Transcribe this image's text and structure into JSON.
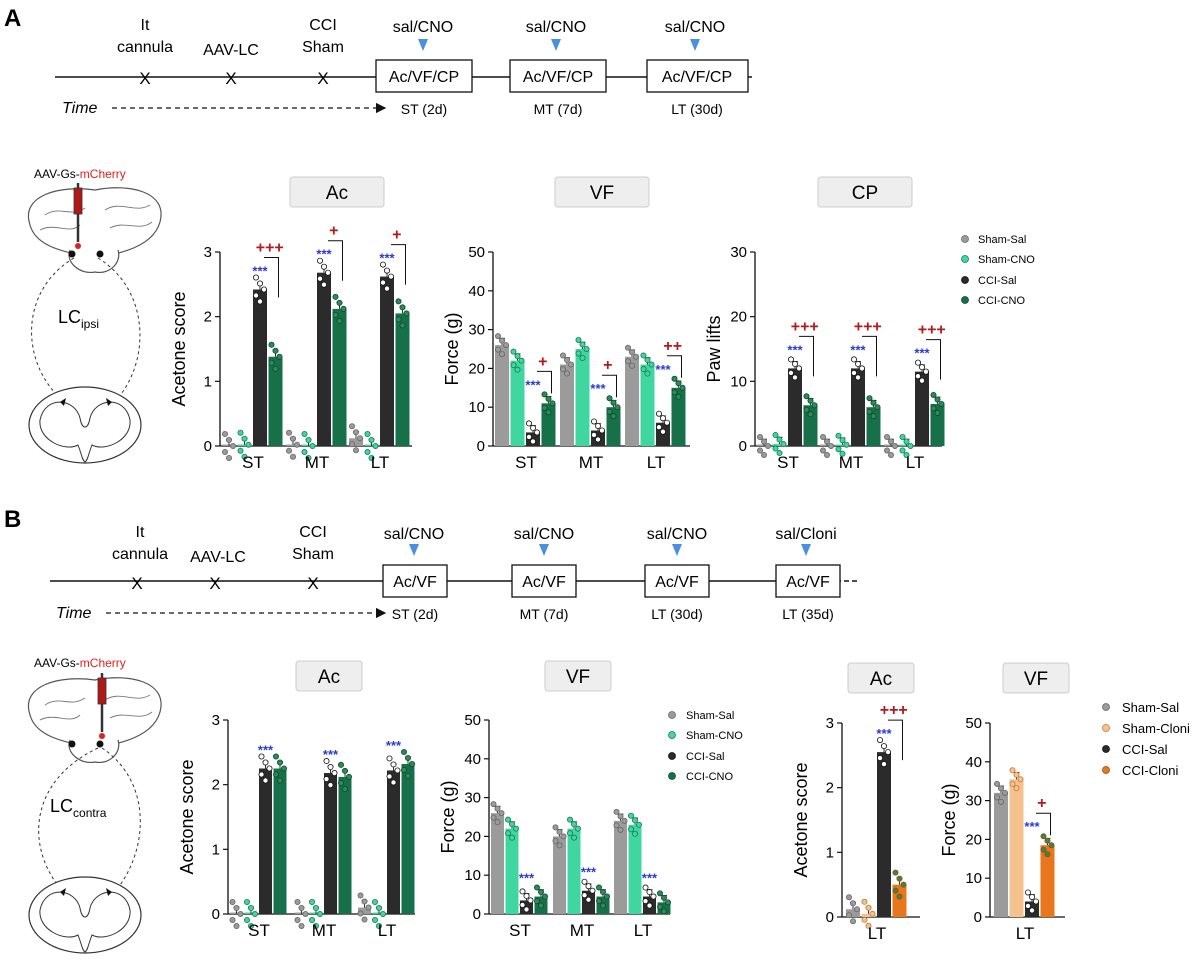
{
  "colors": {
    "sham_sal": "#9b9b9b",
    "sham_cno": "#3fd6a0",
    "cci_sal": "#2b2b2b",
    "cci_cno": "#16704a",
    "sham_cloni": "#f5c28f",
    "cci_cloni": "#e8761c",
    "stat_blue": "#2a3ad8",
    "stat_red": "#b31b1b",
    "arrow_blue": "#4a90e0",
    "mcherry_red": "#e02020"
  },
  "panelA": {
    "letter": "A",
    "timeline": {
      "events": [
        "It\ncannula",
        "AAV-LC",
        "CCI\nSham"
      ],
      "injection": "sal/CNO",
      "boxes": [
        "Ac/VF/CP",
        "Ac/VF/CP",
        "Ac/VF/CP"
      ],
      "times": [
        "ST (2d)",
        "MT (7d)",
        "LT (30d)"
      ],
      "time_label": "Time"
    },
    "brain": {
      "vector_prefix": "AAV-Gs-",
      "vector_suffix": "mCherry",
      "lc_main": "LC",
      "lc_sub": "ipsi"
    },
    "legend": [
      "Sham-Sal",
      "Sham-CNO",
      "CCI-Sal",
      "CCI-CNO"
    ]
  },
  "panelB": {
    "letter": "B",
    "timeline": {
      "events": [
        "It\ncannula",
        "AAV-LC",
        "CCI\nSham"
      ],
      "injections": [
        "sal/CNO",
        "sal/CNO",
        "sal/CNO",
        "sal/Cloni"
      ],
      "boxes": [
        "Ac/VF",
        "Ac/VF",
        "Ac/VF",
        "Ac/VF"
      ],
      "times": [
        "ST (2d)",
        "MT (7d)",
        "LT (30d)",
        "LT (35d)"
      ],
      "time_label": "Time"
    },
    "brain": {
      "vector_prefix": "AAV-Gs-",
      "vector_suffix": "mCherry",
      "lc_main": "LC",
      "lc_sub": "contra"
    },
    "legend": [
      "Sham-Sal",
      "Sham-CNO",
      "CCI-Sal",
      "CCI-CNO"
    ],
    "legend2": [
      "Sham-Sal",
      "Sham-Cloni",
      "CCI-Sal",
      "CCI-Cloni"
    ]
  },
  "chart_data": [
    {
      "panel": "A",
      "title": "Ac",
      "type": "bar",
      "ylabel": "Acetone score",
      "ylim": [
        0,
        3
      ],
      "yticks": [
        0,
        1,
        2,
        3
      ],
      "categories": [
        "ST",
        "MT",
        "LT"
      ],
      "series": [
        {
          "name": "Sham-Sal",
          "values": [
            0.0,
            0.02,
            0.12
          ]
        },
        {
          "name": "Sham-CNO",
          "values": [
            0.02,
            0.0,
            0.0
          ]
        },
        {
          "name": "CCI-Sal",
          "values": [
            2.42,
            2.68,
            2.62
          ]
        },
        {
          "name": "CCI-CNO",
          "values": [
            1.38,
            2.12,
            2.05
          ]
        }
      ],
      "stars": [
        "***",
        "***",
        "***"
      ],
      "pluses": [
        "+++",
        "+",
        "+"
      ]
    },
    {
      "panel": "A",
      "title": "VF",
      "type": "bar",
      "ylabel": "Force (g)",
      "ylim": [
        0,
        50
      ],
      "yticks": [
        0,
        10,
        20,
        30,
        40,
        50
      ],
      "categories": [
        "ST",
        "MT",
        "LT"
      ],
      "series": [
        {
          "name": "Sham-Sal",
          "values": [
            26,
            21,
            23
          ]
        },
        {
          "name": "Sham-CNO",
          "values": [
            22,
            25,
            21
          ]
        },
        {
          "name": "CCI-Sal",
          "values": [
            3.5,
            4,
            6
          ]
        },
        {
          "name": "CCI-CNO",
          "values": [
            11,
            10,
            15
          ]
        }
      ],
      "stars": [
        "***",
        "***",
        "***"
      ],
      "pluses": [
        "+",
        "+",
        "++"
      ]
    },
    {
      "panel": "A",
      "title": "CP",
      "type": "bar",
      "ylabel": "Paw lifts",
      "ylim": [
        0,
        30
      ],
      "yticks": [
        0,
        10,
        20,
        30
      ],
      "categories": [
        "ST",
        "MT",
        "LT"
      ],
      "series": [
        {
          "name": "Sham-Sal",
          "values": [
            0,
            0,
            0
          ]
        },
        {
          "name": "Sham-CNO",
          "values": [
            0.3,
            0.2,
            0
          ]
        },
        {
          "name": "CCI-Sal",
          "values": [
            12,
            12,
            11.5
          ]
        },
        {
          "name": "CCI-CNO",
          "values": [
            6.3,
            6,
            6.5
          ]
        }
      ],
      "stars": [
        "***",
        "***",
        "***"
      ],
      "pluses": [
        "+++",
        "+++",
        "+++"
      ]
    },
    {
      "panel": "B",
      "title": "Ac",
      "type": "bar",
      "ylabel": "Acetone score",
      "ylim": [
        0,
        3
      ],
      "yticks": [
        0,
        1,
        2,
        3
      ],
      "categories": [
        "ST",
        "MT",
        "LT"
      ],
      "series": [
        {
          "name": "Sham-Sal",
          "values": [
            0,
            0,
            0.1
          ]
        },
        {
          "name": "Sham-CNO",
          "values": [
            0,
            0,
            0
          ]
        },
        {
          "name": "CCI-Sal",
          "values": [
            2.25,
            2.18,
            2.22
          ]
        },
        {
          "name": "CCI-CNO",
          "values": [
            2.25,
            2.12,
            2.32
          ]
        }
      ],
      "stars": [
        "***",
        "***",
        "***"
      ],
      "pluses": [
        "",
        "",
        ""
      ]
    },
    {
      "panel": "B",
      "title": "VF",
      "type": "bar",
      "ylabel": "Force (g)",
      "ylim": [
        0,
        50
      ],
      "yticks": [
        0,
        10,
        20,
        30,
        40,
        50
      ],
      "categories": [
        "ST",
        "MT",
        "LT"
      ],
      "series": [
        {
          "name": "Sham-Sal",
          "values": [
            26,
            20,
            24
          ]
        },
        {
          "name": "Sham-CNO",
          "values": [
            22,
            22,
            23
          ]
        },
        {
          "name": "CCI-Sal",
          "values": [
            3.5,
            6,
            4.5
          ]
        },
        {
          "name": "CCI-CNO",
          "values": [
            4.5,
            4.5,
            3
          ]
        }
      ],
      "stars": [
        "***",
        "***",
        "***"
      ],
      "pluses": [
        "",
        "",
        ""
      ]
    },
    {
      "panel": "B",
      "title": "Ac",
      "type": "bar",
      "ylabel": "Acetone score",
      "ylim": [
        0,
        3
      ],
      "yticks": [
        0,
        1,
        2,
        3
      ],
      "categories": [
        "LT"
      ],
      "series": [
        {
          "name": "Sham-Sal",
          "values": [
            0.12
          ]
        },
        {
          "name": "Sham-Cloni",
          "values": [
            0.05
          ]
        },
        {
          "name": "CCI-Sal",
          "values": [
            2.55
          ]
        },
        {
          "name": "CCI-Cloni",
          "values": [
            0.5
          ]
        }
      ],
      "stars": [
        "***"
      ],
      "pluses": [
        "+++"
      ]
    },
    {
      "panel": "B",
      "title": "VF",
      "type": "bar",
      "ylabel": "Force (g)",
      "ylim": [
        0,
        50
      ],
      "yticks": [
        0,
        10,
        20,
        30,
        40,
        50
      ],
      "categories": [
        "LT"
      ],
      "series": [
        {
          "name": "Sham-Sal",
          "values": [
            32
          ]
        },
        {
          "name": "Sham-Cloni",
          "values": [
            35.5
          ]
        },
        {
          "name": "CCI-Sal",
          "values": [
            4
          ]
        },
        {
          "name": "CCI-Cloni",
          "values": [
            18.5
          ]
        }
      ],
      "stars": [
        "***"
      ],
      "pluses": [
        "+"
      ]
    }
  ]
}
